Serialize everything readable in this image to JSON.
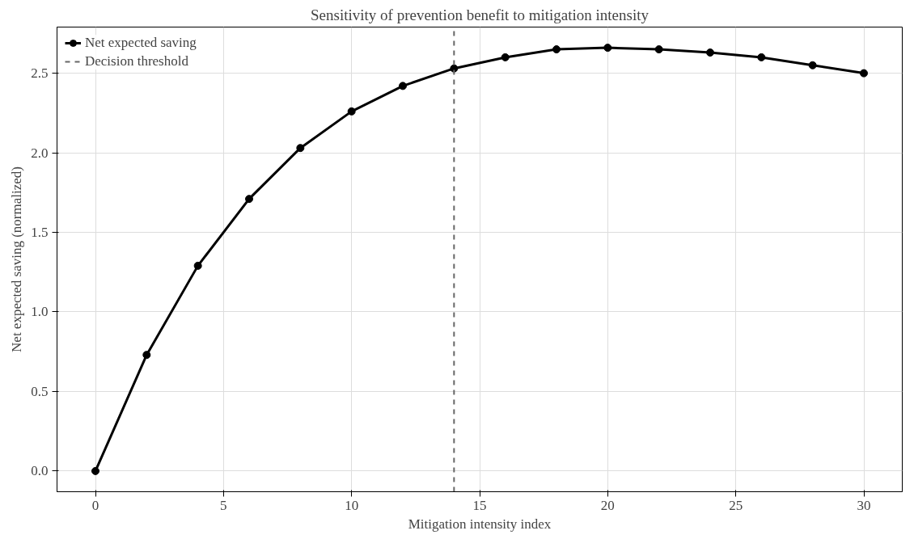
{
  "chart_data": {
    "type": "line",
    "title": "Sensitivity of prevention benefit to mitigation intensity",
    "xlabel": "Mitigation intensity index",
    "ylabel": "Net expected saving (normalized)",
    "x": [
      0,
      2,
      4,
      6,
      8,
      10,
      12,
      14,
      16,
      18,
      20,
      22,
      24,
      26,
      28,
      30
    ],
    "series": [
      {
        "name": "Net expected saving",
        "color": "#000000",
        "values": [
          0,
          0.73,
          1.29,
          1.71,
          2.03,
          2.26,
          2.42,
          2.53,
          2.6,
          2.65,
          2.66,
          2.65,
          2.63,
          2.6,
          2.55,
          2.5
        ]
      }
    ],
    "xlim": [
      -1.5,
      31.5
    ],
    "ylim": [
      -0.13,
      2.79
    ],
    "xticks": [
      0,
      5,
      10,
      15,
      20,
      25,
      30
    ],
    "yticks": [
      {
        "value": 0,
        "label": "0.0"
      },
      {
        "value": 0.5,
        "label": "0.5"
      },
      {
        "value": 1,
        "label": "1.0"
      },
      {
        "value": 1.5,
        "label": "1.5"
      },
      {
        "value": 2,
        "label": "2.0"
      },
      {
        "value": 2.5,
        "label": "2.5"
      }
    ],
    "ref_lines": [
      {
        "axis": "x",
        "value": 14,
        "label": "Decision threshold",
        "color": "#666666",
        "line_style": "dashed"
      }
    ],
    "grid": true,
    "legend": "top left",
    "marker": "circle",
    "line_style": "solid"
  }
}
